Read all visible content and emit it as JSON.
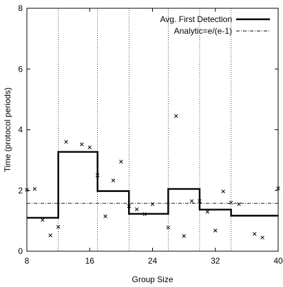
{
  "chart_data": {
    "type": "line",
    "xlabel": "Group Size",
    "ylabel": "Time (protocol periods)",
    "xlim": [
      8,
      40
    ],
    "ylim": [
      0,
      8
    ],
    "x_ticks": [
      "8",
      "16",
      "24",
      "32",
      "40"
    ],
    "y_ticks": [
      "0",
      "2",
      "4",
      "6",
      "8"
    ],
    "vertical_dotted_lines_x": [
      12,
      17,
      21,
      26,
      30,
      34
    ],
    "legend_position": "top-right",
    "series": [
      {
        "name": "Avg. First Detection",
        "style": "step",
        "color": "#000000",
        "x": [
          8,
          12,
          17,
          21,
          26,
          30,
          34,
          40
        ],
        "y": [
          1.1,
          3.27,
          1.98,
          1.23,
          2.05,
          1.37,
          1.17,
          1.17
        ]
      },
      {
        "name": "Analytic=e/(e-1)",
        "style": "dash-dot",
        "color": "#000000",
        "y_constant": 1.58
      },
      {
        "name": "",
        "style": "scatter",
        "marker": "x",
        "x": [
          8,
          9,
          10,
          11,
          12,
          13,
          15,
          16,
          17,
          18,
          19,
          20,
          21,
          22,
          23,
          24,
          26,
          27,
          28,
          29,
          30,
          31,
          32,
          33,
          34,
          35,
          37,
          38,
          40
        ],
        "y": [
          2.02,
          2.05,
          1.03,
          0.52,
          0.8,
          3.6,
          3.52,
          3.42,
          2.5,
          1.15,
          2.33,
          2.95,
          1.48,
          1.38,
          1.22,
          1.55,
          0.78,
          4.45,
          0.5,
          1.65,
          1.65,
          1.3,
          0.68,
          1.97,
          1.6,
          1.55,
          0.57,
          0.45,
          2.07
        ]
      }
    ]
  }
}
